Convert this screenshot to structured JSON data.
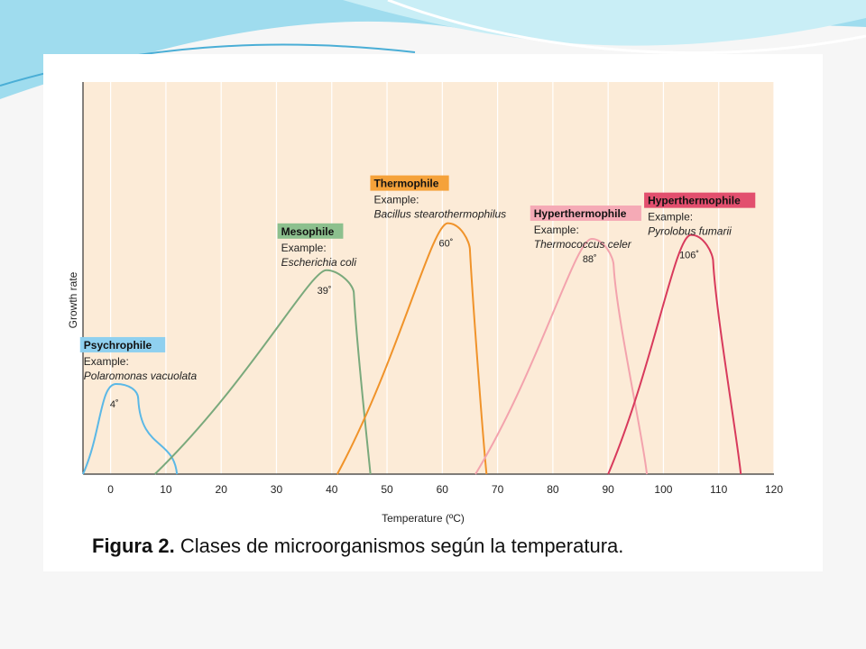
{
  "caption": {
    "label": "Figura 2.",
    "text": "Clases de microorganismos según la temperatura."
  },
  "chart_data": {
    "type": "line",
    "title": "",
    "xlabel": "Temperature (ºC)",
    "ylabel": "Growth rate",
    "xlim": [
      -5,
      120
    ],
    "ylim": [
      0,
      1
    ],
    "x_ticks": [
      0,
      10,
      20,
      30,
      40,
      50,
      60,
      70,
      80,
      90,
      100,
      110,
      120
    ],
    "grid": "vertical",
    "series": [
      {
        "name": "Psychrophile",
        "example_label": "Example:",
        "example": "Polaromonas vacuolata",
        "optimum": "4˚",
        "color": "#5bb8e6",
        "tag_color": "#8fd0ef",
        "x": [
          -5,
          1,
          5,
          12
        ],
        "y": [
          0,
          0.23,
          0.2,
          0
        ]
      },
      {
        "name": "Mesophile",
        "example_label": "Example:",
        "example": "Escherichia coli",
        "optimum": "39˚",
        "color": "#7aa97c",
        "tag_color": "#8cc08e",
        "x": [
          8,
          39,
          44,
          47
        ],
        "y": [
          0,
          0.52,
          0.47,
          0
        ]
      },
      {
        "name": "Thermophile",
        "example_label": "Example:",
        "example": "Bacillus stearothermophilus",
        "optimum": "60˚",
        "color": "#f0932a",
        "tag_color": "#f5a23a",
        "x": [
          41,
          61,
          65,
          68
        ],
        "y": [
          0,
          0.64,
          0.58,
          0
        ]
      },
      {
        "name": "Hyperthermophile",
        "example_label": "Example:",
        "example": "Thermococcus celer",
        "optimum": "88˚",
        "color": "#f3a3ad",
        "tag_color": "#f5aab6",
        "x": [
          66,
          87,
          91,
          97
        ],
        "y": [
          0,
          0.6,
          0.54,
          0
        ]
      },
      {
        "name": "Hyperthermophile",
        "example_label": "Example:",
        "example": "Pyrolobus fumarii",
        "optimum": "106˚",
        "color": "#d83a5c",
        "tag_color": "#e24f6e",
        "x": [
          90,
          105,
          109,
          114
        ],
        "y": [
          0,
          0.61,
          0.55,
          0
        ]
      }
    ]
  }
}
